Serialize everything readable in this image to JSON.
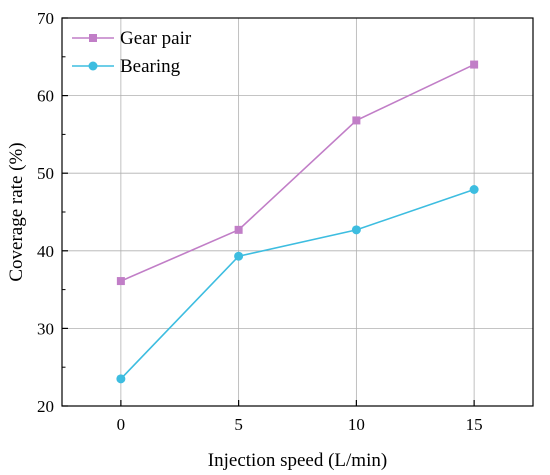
{
  "chart_data": {
    "type": "line",
    "title": "",
    "xlabel": "Injection speed (L/min)",
    "ylabel": "Coverage rate (%)",
    "x": [
      0,
      5,
      10,
      15
    ],
    "xlim": [
      -2.5,
      17.5
    ],
    "ylim": [
      20,
      70
    ],
    "xticks": [
      0,
      5,
      10,
      15
    ],
    "yticks": [
      20,
      30,
      40,
      50,
      60,
      70
    ],
    "grid": true,
    "legend_position": "top-left",
    "series": [
      {
        "name": "Gear pair",
        "values": [
          36.1,
          42.7,
          56.8,
          64.0
        ],
        "color": "#c17ec7",
        "marker": "square"
      },
      {
        "name": "Bearing",
        "values": [
          23.5,
          39.3,
          42.7,
          47.9
        ],
        "color": "#3dbde0",
        "marker": "circle"
      }
    ]
  }
}
